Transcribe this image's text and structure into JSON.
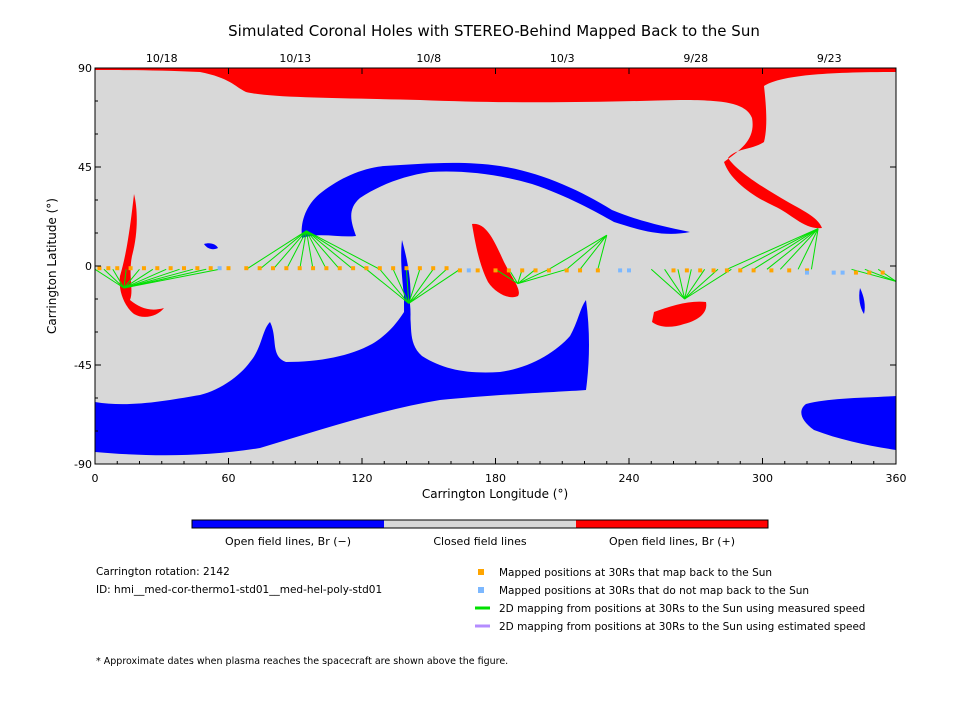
{
  "chart_data": {
    "type": "map",
    "title": "Simulated Coronal Holes with STEREO-Behind Mapped Back to the Sun",
    "xlabel": "Carrington Longitude (°)",
    "ylabel": "Carrington Latitude (°)",
    "xlim": [
      0,
      360
    ],
    "ylim": [
      -90,
      90
    ],
    "x_ticks": [
      "0",
      "60",
      "120",
      "180",
      "240",
      "300",
      "360"
    ],
    "y_ticks": [
      "90",
      "45",
      "0",
      "-45",
      "-90"
    ],
    "date_ticks": [
      {
        "label": "10/18",
        "lon": 30
      },
      {
        "label": "10/13",
        "lon": 90
      },
      {
        "label": "10/8",
        "lon": 150
      },
      {
        "label": "10/3",
        "lon": 210
      },
      {
        "label": "9/28",
        "lon": 270
      },
      {
        "label": "9/23",
        "lon": 330
      }
    ],
    "colorbar": {
      "labels": [
        "Open field lines, Br (−)",
        "Closed field lines",
        "Open field lines, Br (+)"
      ],
      "colors": [
        "#0000ff",
        "#d8d8d8",
        "#ff0000"
      ]
    },
    "mapped_back": [
      {
        "lon": 2,
        "lat": -1
      },
      {
        "lon": 6,
        "lat": -1
      },
      {
        "lon": 10,
        "lat": -1
      },
      {
        "lon": 16,
        "lat": -1
      },
      {
        "lon": 22,
        "lat": -1
      },
      {
        "lon": 28,
        "lat": -1
      },
      {
        "lon": 34,
        "lat": -1
      },
      {
        "lon": 40,
        "lat": -1
      },
      {
        "lon": 46,
        "lat": -1
      },
      {
        "lon": 52,
        "lat": -1
      },
      {
        "lon": 60,
        "lat": -1
      },
      {
        "lon": 68,
        "lat": -1
      },
      {
        "lon": 74,
        "lat": -1
      },
      {
        "lon": 80,
        "lat": -1
      },
      {
        "lon": 86,
        "lat": -1
      },
      {
        "lon": 92,
        "lat": -1
      },
      {
        "lon": 98,
        "lat": -1
      },
      {
        "lon": 104,
        "lat": -1
      },
      {
        "lon": 110,
        "lat": -1
      },
      {
        "lon": 116,
        "lat": -1
      },
      {
        "lon": 122,
        "lat": -1
      },
      {
        "lon": 128,
        "lat": -1
      },
      {
        "lon": 134,
        "lat": -1
      },
      {
        "lon": 140,
        "lat": -1
      },
      {
        "lon": 146,
        "lat": -1
      },
      {
        "lon": 152,
        "lat": -1
      },
      {
        "lon": 158,
        "lat": -1
      },
      {
        "lon": 164,
        "lat": -2
      },
      {
        "lon": 172,
        "lat": -2
      },
      {
        "lon": 180,
        "lat": -2
      },
      {
        "lon": 186,
        "lat": -2
      },
      {
        "lon": 192,
        "lat": -2
      },
      {
        "lon": 198,
        "lat": -2
      },
      {
        "lon": 204,
        "lat": -2
      },
      {
        "lon": 212,
        "lat": -2
      },
      {
        "lon": 218,
        "lat": -2
      },
      {
        "lon": 226,
        "lat": -2
      },
      {
        "lon": 260,
        "lat": -2
      },
      {
        "lon": 266,
        "lat": -2
      },
      {
        "lon": 272,
        "lat": -2
      },
      {
        "lon": 278,
        "lat": -2
      },
      {
        "lon": 284,
        "lat": -2
      },
      {
        "lon": 290,
        "lat": -2
      },
      {
        "lon": 296,
        "lat": -2
      },
      {
        "lon": 304,
        "lat": -2
      },
      {
        "lon": 312,
        "lat": -2
      },
      {
        "lon": 320,
        "lat": -2
      },
      {
        "lon": 342,
        "lat": -3
      },
      {
        "lon": 348,
        "lat": -3
      },
      {
        "lon": 354,
        "lat": -3
      }
    ],
    "not_mapped": [
      {
        "lon": 56,
        "lat": -1
      },
      {
        "lon": 168,
        "lat": -2
      },
      {
        "lon": 236,
        "lat": -2
      },
      {
        "lon": 240,
        "lat": -2
      },
      {
        "lon": 320,
        "lat": -3
      },
      {
        "lon": 332,
        "lat": -3
      },
      {
        "lon": 336,
        "lat": -3
      }
    ],
    "measured_speed_mappings": [
      {
        "foot": {
          "lon": 13,
          "lat": -10
        },
        "from": [
          0,
          4,
          8,
          14,
          20,
          26,
          32,
          38,
          44,
          50,
          56
        ]
      },
      {
        "foot": {
          "lon": 95,
          "lat": 16
        },
        "from": [
          68,
          74,
          80,
          86,
          92,
          98,
          104,
          110,
          116,
          122,
          128
        ]
      },
      {
        "foot": {
          "lon": 141,
          "lat": -17
        },
        "from": [
          122,
          128,
          134,
          140,
          146,
          152,
          158,
          164
        ]
      },
      {
        "foot": {
          "lon": 190,
          "lat": -8
        },
        "from": [
          180,
          186,
          192,
          198,
          204,
          212
        ]
      },
      {
        "foot": {
          "lon": 230,
          "lat": 14
        },
        "from": [
          204,
          212,
          218,
          226
        ]
      },
      {
        "foot": {
          "lon": 265,
          "lat": -15
        },
        "from": [
          250,
          256,
          262,
          268,
          274,
          280,
          286
        ]
      },
      {
        "foot": {
          "lon": 325,
          "lat": 17
        },
        "from": [
          284,
          290,
          296,
          302,
          308,
          316,
          322
        ]
      },
      {
        "foot": {
          "lon": 360,
          "lat": -7
        },
        "from": [
          340,
          346,
          352
        ]
      }
    ],
    "legend": {
      "position": "bottom-right",
      "items": [
        {
          "label": "Mapped positions at 30Rs that map back to the Sun",
          "color": "#ffa500",
          "kind": "square"
        },
        {
          "label": "Mapped positions at 30Rs that do not map back to the Sun",
          "color": "#7cb8ff",
          "kind": "square"
        },
        {
          "label": "2D mapping from positions at 30Rs to the Sun using measured speed",
          "color": "#00e000",
          "kind": "line"
        },
        {
          "label": "2D mapping from positions at 30Rs to the Sun using estimated speed",
          "color": "#b48cff",
          "kind": "line"
        }
      ]
    }
  },
  "info": {
    "rotation": "Carrington rotation: 2142",
    "id": "ID: hmi__med-cor-thermo1-std01__med-hel-poly-std01",
    "footnote": "* Approximate dates when plasma reaches the spacecraft are shown above the figure."
  }
}
